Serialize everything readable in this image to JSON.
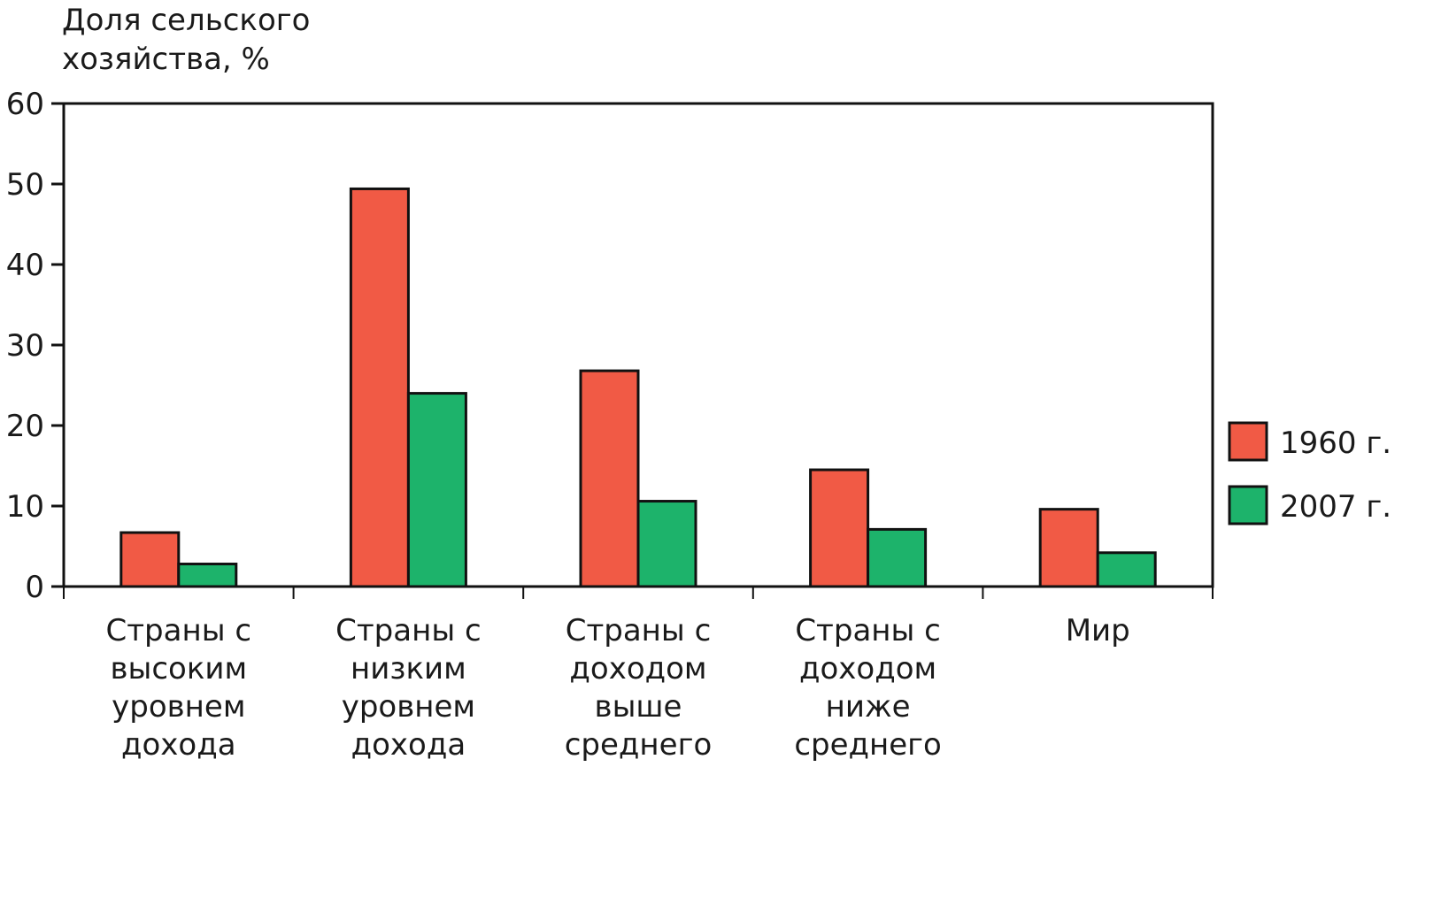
{
  "chart_data": {
    "type": "bar",
    "ylabel_lines": [
      "Доля сельского",
      "хозяйства, %"
    ],
    "categories": [
      [
        "Страны с",
        "высоким",
        "уровнем",
        "дохода"
      ],
      [
        "Страны с",
        "низким",
        "уровнем",
        "дохода"
      ],
      [
        "Страны с",
        "доходом",
        "выше",
        "среднего"
      ],
      [
        "Страны с",
        "доходом",
        "ниже",
        "среднего"
      ],
      [
        "Мир"
      ]
    ],
    "series": [
      {
        "name": "1960 г.",
        "color": "#f15a45",
        "values": [
          6.7,
          49.4,
          26.8,
          14.5,
          9.6
        ]
      },
      {
        "name": "2007 г.",
        "color": "#1db36b",
        "values": [
          2.8,
          24.0,
          10.6,
          7.1,
          4.2
        ]
      }
    ],
    "ylim": [
      0,
      60
    ],
    "yticks": [
      "0",
      "10",
      "20",
      "30",
      "40",
      "50",
      "60"
    ],
    "grid": false,
    "legend_position": "right"
  }
}
